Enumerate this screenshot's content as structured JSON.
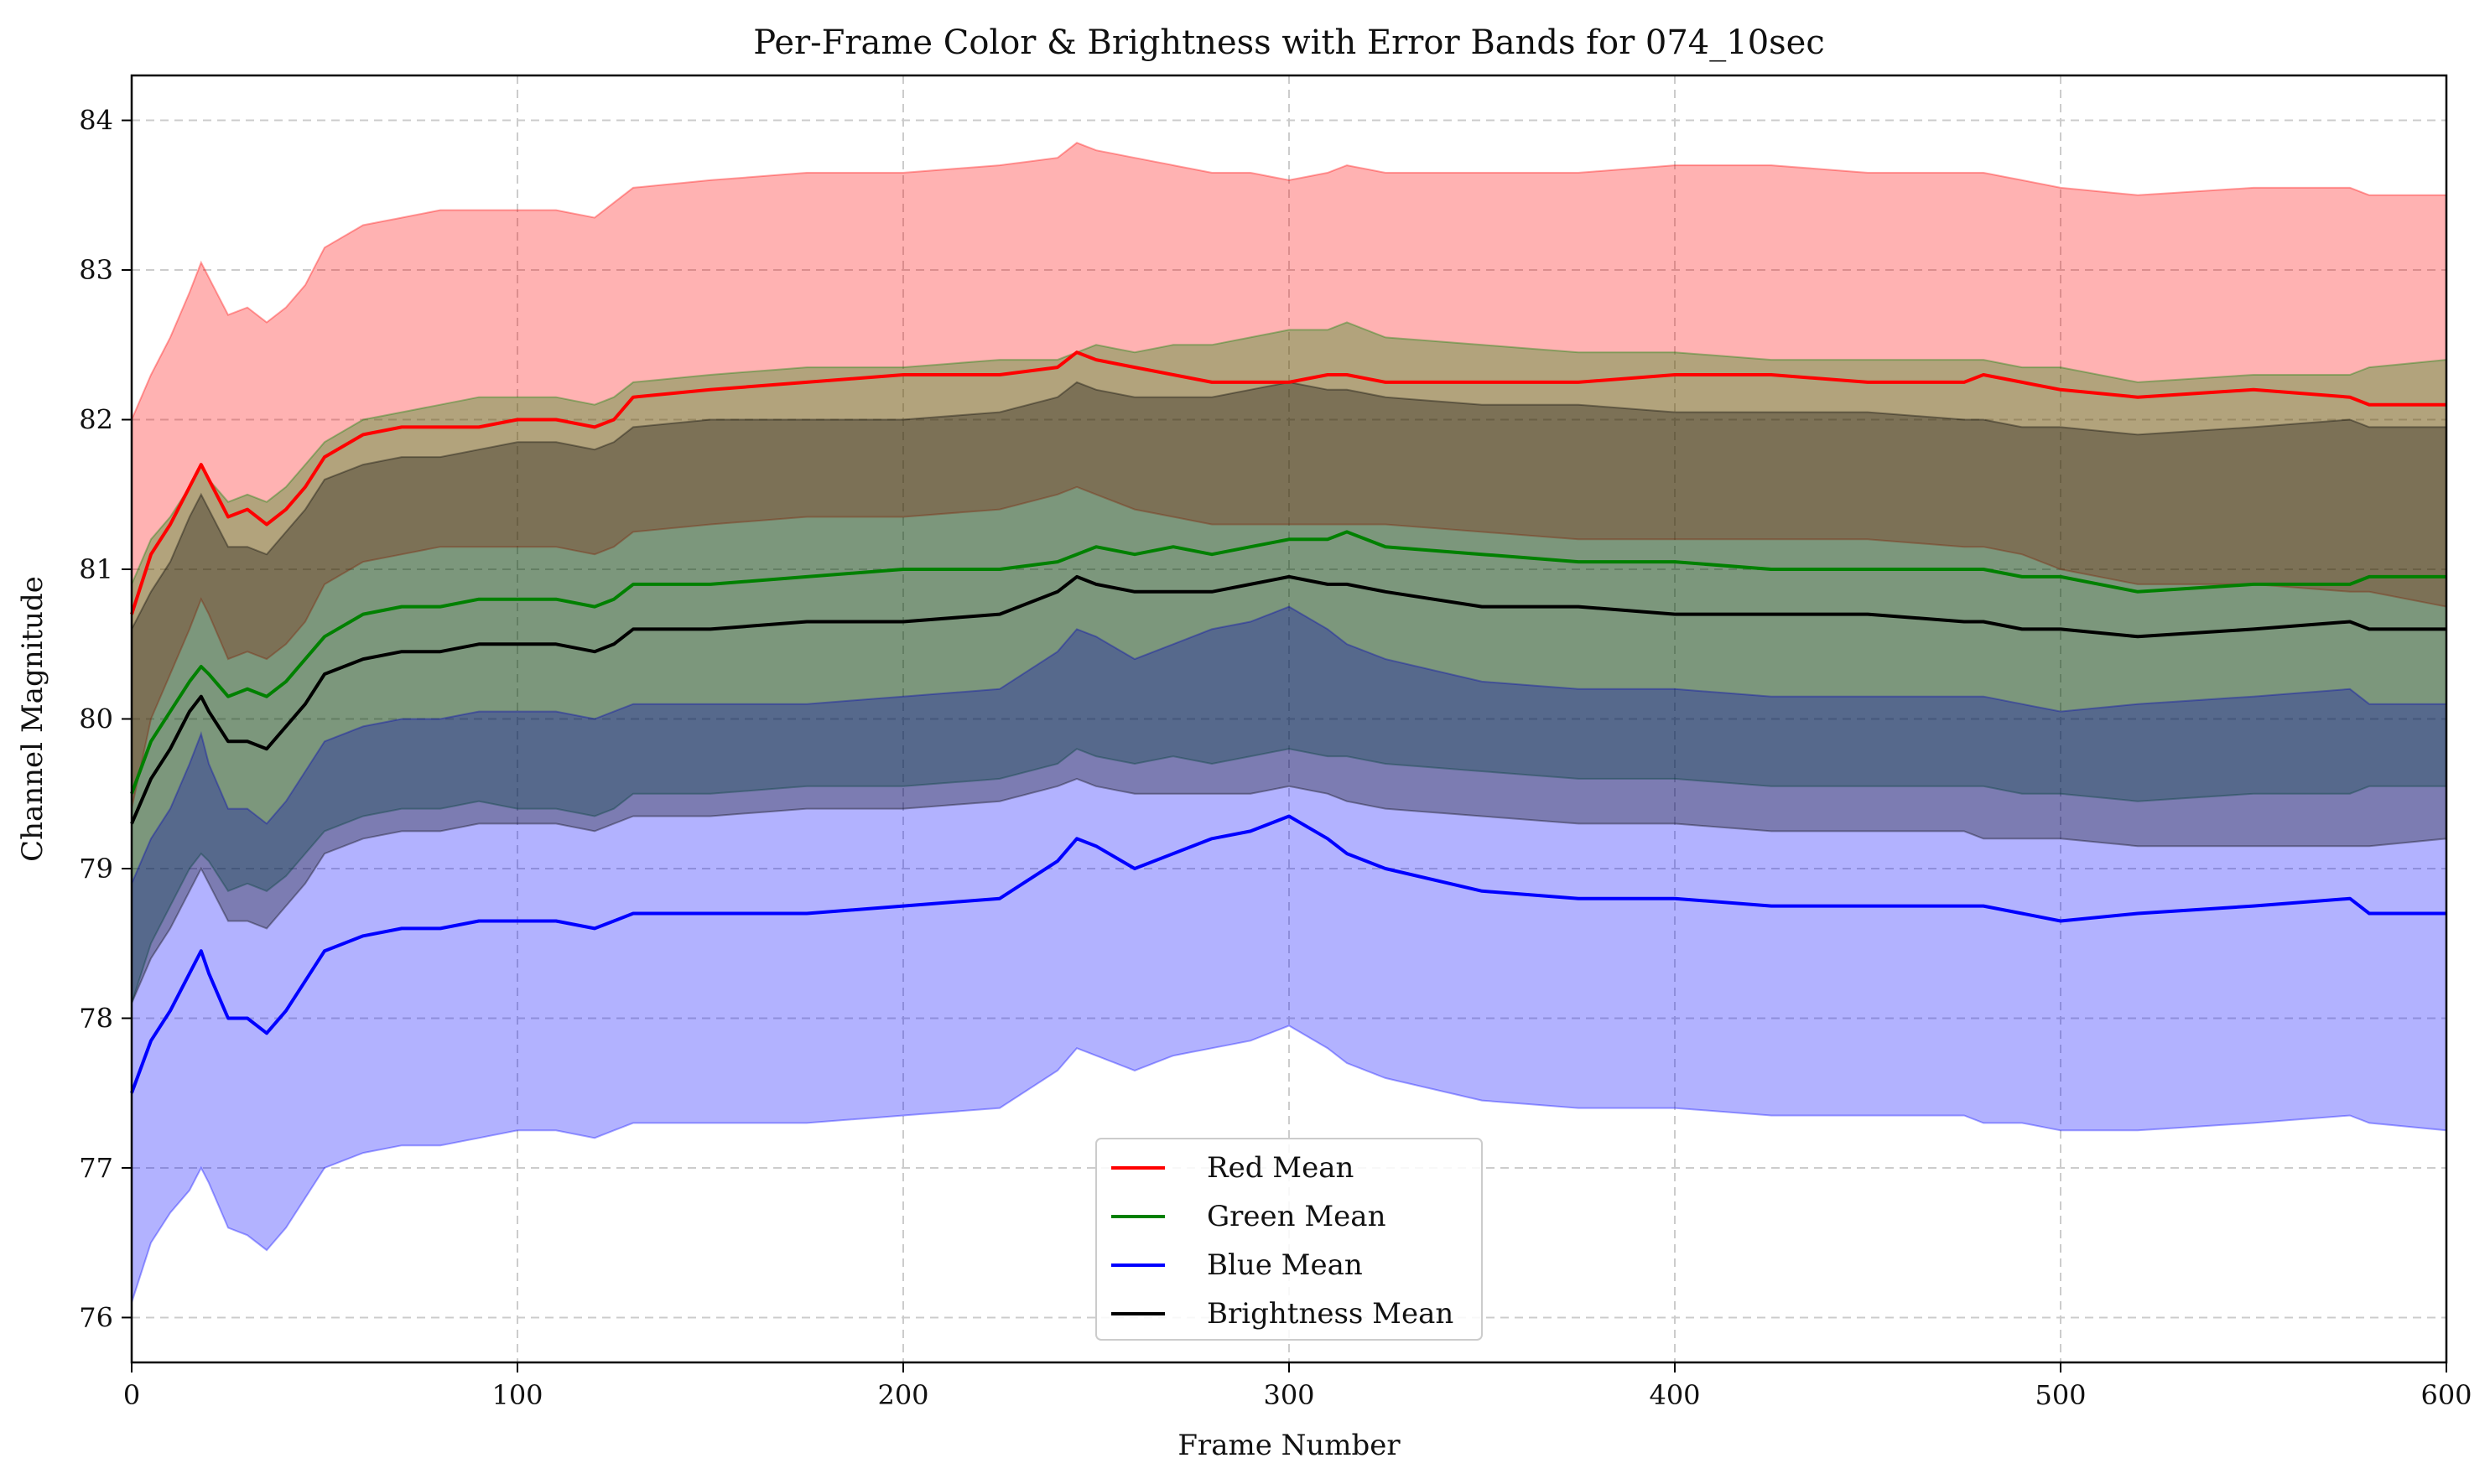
{
  "chart_data": {
    "type": "line",
    "title": "Per-Frame Color & Brightness with Error Bands for 074_10sec",
    "xlabel": "Frame Number",
    "ylabel": "Channel Magnitude",
    "xlim": [
      0,
      600
    ],
    "ylim": [
      75.7,
      84.3
    ],
    "xticks": [
      "0",
      "100",
      "200",
      "300",
      "400",
      "500",
      "600"
    ],
    "yticks": [
      "76",
      "77",
      "78",
      "79",
      "80",
      "81",
      "82",
      "83",
      "84"
    ],
    "grid": true,
    "legend_position": "bottom-center",
    "x": [
      0,
      5,
      10,
      15,
      18,
      20,
      25,
      30,
      35,
      40,
      45,
      50,
      60,
      70,
      80,
      90,
      100,
      110,
      120,
      125,
      130,
      150,
      175,
      200,
      225,
      240,
      245,
      250,
      260,
      270,
      280,
      290,
      300,
      310,
      315,
      325,
      350,
      375,
      400,
      425,
      450,
      475,
      480,
      490,
      500,
      520,
      550,
      575,
      580,
      600
    ],
    "series": [
      {
        "name": "Red Mean",
        "color": "#ff0000",
        "band_color": "#ff0000",
        "values": [
          80.7,
          81.1,
          81.3,
          81.55,
          81.7,
          81.6,
          81.35,
          81.4,
          81.3,
          81.4,
          81.55,
          81.75,
          81.9,
          81.95,
          81.95,
          81.95,
          82.0,
          82.0,
          81.95,
          82.0,
          82.15,
          82.2,
          82.25,
          82.3,
          82.3,
          82.35,
          82.45,
          82.4,
          82.35,
          82.3,
          82.25,
          82.25,
          82.25,
          82.3,
          82.3,
          82.25,
          82.25,
          82.25,
          82.3,
          82.3,
          82.25,
          82.25,
          82.3,
          82.25,
          82.2,
          82.15,
          82.2,
          82.15,
          82.1,
          82.1
        ],
        "lower": [
          79.4,
          80.0,
          80.3,
          80.6,
          80.8,
          80.7,
          80.4,
          80.45,
          80.4,
          80.5,
          80.65,
          80.9,
          81.05,
          81.1,
          81.15,
          81.15,
          81.15,
          81.15,
          81.1,
          81.15,
          81.25,
          81.3,
          81.35,
          81.35,
          81.4,
          81.5,
          81.55,
          81.5,
          81.4,
          81.35,
          81.3,
          81.3,
          81.3,
          81.3,
          81.3,
          81.3,
          81.25,
          81.2,
          81.2,
          81.2,
          81.2,
          81.15,
          81.15,
          81.1,
          81.0,
          80.9,
          80.9,
          80.85,
          80.85,
          80.75
        ],
        "upper": [
          82.0,
          82.3,
          82.55,
          82.85,
          83.05,
          82.95,
          82.7,
          82.75,
          82.65,
          82.75,
          82.9,
          83.15,
          83.3,
          83.35,
          83.4,
          83.4,
          83.4,
          83.4,
          83.35,
          83.45,
          83.55,
          83.6,
          83.65,
          83.65,
          83.7,
          83.75,
          83.85,
          83.8,
          83.75,
          83.7,
          83.65,
          83.65,
          83.6,
          83.65,
          83.7,
          83.65,
          83.65,
          83.65,
          83.7,
          83.7,
          83.65,
          83.65,
          83.65,
          83.6,
          83.55,
          83.5,
          83.55,
          83.55,
          83.5,
          83.5
        ]
      },
      {
        "name": "Green Mean",
        "color": "#008000",
        "band_color": "#008000",
        "values": [
          79.5,
          79.85,
          80.05,
          80.25,
          80.35,
          80.3,
          80.15,
          80.2,
          80.15,
          80.25,
          80.4,
          80.55,
          80.7,
          80.75,
          80.75,
          80.8,
          80.8,
          80.8,
          80.75,
          80.8,
          80.9,
          80.9,
          80.95,
          81.0,
          81.0,
          81.05,
          81.1,
          81.15,
          81.1,
          81.15,
          81.1,
          81.15,
          81.2,
          81.2,
          81.25,
          81.15,
          81.1,
          81.05,
          81.05,
          81.0,
          81.0,
          81.0,
          81.0,
          80.95,
          80.95,
          80.85,
          80.9,
          80.9,
          80.95,
          80.95
        ],
        "lower": [
          78.1,
          78.5,
          78.75,
          79.0,
          79.1,
          79.05,
          78.85,
          78.9,
          78.85,
          78.95,
          79.1,
          79.25,
          79.35,
          79.4,
          79.4,
          79.45,
          79.4,
          79.4,
          79.35,
          79.4,
          79.5,
          79.5,
          79.55,
          79.55,
          79.6,
          79.7,
          79.8,
          79.75,
          79.7,
          79.75,
          79.7,
          79.75,
          79.8,
          79.75,
          79.75,
          79.7,
          79.65,
          79.6,
          79.6,
          79.55,
          79.55,
          79.55,
          79.55,
          79.5,
          79.5,
          79.45,
          79.5,
          79.5,
          79.55,
          79.55
        ],
        "upper": [
          80.9,
          81.2,
          81.35,
          81.55,
          81.7,
          81.6,
          81.45,
          81.5,
          81.45,
          81.55,
          81.7,
          81.85,
          82.0,
          82.05,
          82.1,
          82.15,
          82.15,
          82.15,
          82.1,
          82.15,
          82.25,
          82.3,
          82.35,
          82.35,
          82.4,
          82.4,
          82.45,
          82.5,
          82.45,
          82.5,
          82.5,
          82.55,
          82.6,
          82.6,
          82.65,
          82.55,
          82.5,
          82.45,
          82.45,
          82.4,
          82.4,
          82.4,
          82.4,
          82.35,
          82.35,
          82.25,
          82.3,
          82.3,
          82.35,
          82.4
        ]
      },
      {
        "name": "Blue Mean",
        "color": "#0000ff",
        "band_color": "#0000ff",
        "values": [
          77.5,
          77.85,
          78.05,
          78.3,
          78.45,
          78.3,
          78.0,
          78.0,
          77.9,
          78.05,
          78.25,
          78.45,
          78.55,
          78.6,
          78.6,
          78.65,
          78.65,
          78.65,
          78.6,
          78.65,
          78.7,
          78.7,
          78.7,
          78.75,
          78.8,
          79.05,
          79.2,
          79.15,
          79.0,
          79.1,
          79.2,
          79.25,
          79.35,
          79.2,
          79.1,
          79.0,
          78.85,
          78.8,
          78.8,
          78.75,
          78.75,
          78.75,
          78.75,
          78.7,
          78.65,
          78.7,
          78.75,
          78.8,
          78.7,
          78.7
        ],
        "lower": [
          76.1,
          76.5,
          76.7,
          76.85,
          77.0,
          76.9,
          76.6,
          76.55,
          76.45,
          76.6,
          76.8,
          77.0,
          77.1,
          77.15,
          77.15,
          77.2,
          77.25,
          77.25,
          77.2,
          77.25,
          77.3,
          77.3,
          77.3,
          77.35,
          77.4,
          77.65,
          77.8,
          77.75,
          77.65,
          77.75,
          77.8,
          77.85,
          77.95,
          77.8,
          77.7,
          77.6,
          77.45,
          77.4,
          77.4,
          77.35,
          77.35,
          77.35,
          77.3,
          77.3,
          77.25,
          77.25,
          77.3,
          77.35,
          77.3,
          77.25
        ],
        "upper": [
          78.9,
          79.2,
          79.4,
          79.7,
          79.9,
          79.7,
          79.4,
          79.4,
          79.3,
          79.45,
          79.65,
          79.85,
          79.95,
          80.0,
          80.0,
          80.05,
          80.05,
          80.05,
          80.0,
          80.05,
          80.1,
          80.1,
          80.1,
          80.15,
          80.2,
          80.45,
          80.6,
          80.55,
          80.4,
          80.5,
          80.6,
          80.65,
          80.75,
          80.6,
          80.5,
          80.4,
          80.25,
          80.2,
          80.2,
          80.15,
          80.15,
          80.15,
          80.15,
          80.1,
          80.05,
          80.1,
          80.15,
          80.2,
          80.1,
          80.1
        ]
      },
      {
        "name": "Brightness Mean",
        "color": "#000000",
        "band_color": "#000000",
        "values": [
          79.3,
          79.6,
          79.8,
          80.05,
          80.15,
          80.05,
          79.85,
          79.85,
          79.8,
          79.95,
          80.1,
          80.3,
          80.4,
          80.45,
          80.45,
          80.5,
          80.5,
          80.5,
          80.45,
          80.5,
          80.6,
          80.6,
          80.65,
          80.65,
          80.7,
          80.85,
          80.95,
          80.9,
          80.85,
          80.85,
          80.85,
          80.9,
          80.95,
          80.9,
          80.9,
          80.85,
          80.75,
          80.75,
          80.7,
          80.7,
          80.7,
          80.65,
          80.65,
          80.6,
          80.6,
          80.55,
          80.6,
          80.65,
          80.6,
          80.6
        ],
        "lower": [
          78.1,
          78.4,
          78.6,
          78.85,
          79.0,
          78.9,
          78.65,
          78.65,
          78.6,
          78.75,
          78.9,
          79.1,
          79.2,
          79.25,
          79.25,
          79.3,
          79.3,
          79.3,
          79.25,
          79.3,
          79.35,
          79.35,
          79.4,
          79.4,
          79.45,
          79.55,
          79.6,
          79.55,
          79.5,
          79.5,
          79.5,
          79.5,
          79.55,
          79.5,
          79.45,
          79.4,
          79.35,
          79.3,
          79.3,
          79.25,
          79.25,
          79.25,
          79.2,
          79.2,
          79.2,
          79.15,
          79.15,
          79.15,
          79.15,
          79.2
        ],
        "upper": [
          80.6,
          80.85,
          81.05,
          81.35,
          81.5,
          81.4,
          81.15,
          81.15,
          81.1,
          81.25,
          81.4,
          81.6,
          81.7,
          81.75,
          81.75,
          81.8,
          81.85,
          81.85,
          81.8,
          81.85,
          81.95,
          82.0,
          82.0,
          82.0,
          82.05,
          82.15,
          82.25,
          82.2,
          82.15,
          82.15,
          82.15,
          82.2,
          82.25,
          82.2,
          82.2,
          82.15,
          82.1,
          82.1,
          82.05,
          82.05,
          82.05,
          82.0,
          82.0,
          81.95,
          81.95,
          81.9,
          81.95,
          82.0,
          81.95,
          81.95
        ]
      }
    ]
  }
}
